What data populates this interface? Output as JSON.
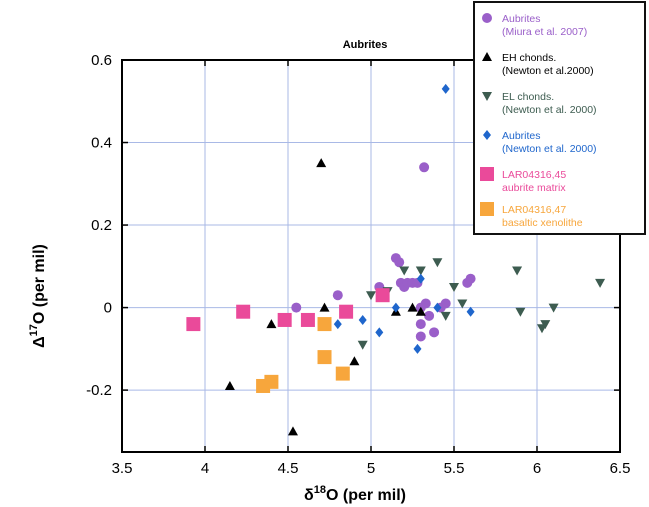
{
  "chart_data": {
    "type": "scatter",
    "title": "Aubrites",
    "xlabel": "δ18O (per mil)",
    "xlabel_parts": {
      "delta": "δ",
      "sup": "18",
      "rest": "O (per mil)"
    },
    "ylabel": "Δ17O (per mil)",
    "ylabel_parts": {
      "delta": "Δ",
      "sup": "17",
      "rest": "O (per mil)"
    },
    "xlim": [
      3.5,
      6.5
    ],
    "ylim": [
      -0.35,
      0.6
    ],
    "x_ticks": [
      3.5,
      4,
      4.5,
      5,
      5.5,
      6,
      6.5
    ],
    "x_tick_labels": [
      "3.5",
      "4",
      "4.5",
      "5",
      "5.5",
      "6",
      "6.5"
    ],
    "y_ticks": [
      -0.2,
      0,
      0.2,
      0.4,
      0.6
    ],
    "y_tick_labels": [
      "-0.2",
      "0",
      "0.2",
      "0.4",
      "0.6"
    ],
    "grid": true,
    "legend_position": "top-right",
    "series": [
      {
        "name": "Aubrites (Miura et al. 2007)",
        "legend_lines": [
          "Aubrites",
          "(Miura et al. 2007)"
        ],
        "marker": "circle",
        "color": "#9a5fc9",
        "points": [
          [
            4.55,
            0.0
          ],
          [
            4.8,
            0.03
          ],
          [
            5.05,
            0.05
          ],
          [
            5.15,
            0.12
          ],
          [
            5.17,
            0.11
          ],
          [
            5.18,
            0.06
          ],
          [
            5.2,
            0.05
          ],
          [
            5.22,
            0.06
          ],
          [
            5.25,
            0.06
          ],
          [
            5.28,
            0.06
          ],
          [
            5.3,
            -0.07
          ],
          [
            5.3,
            -0.04
          ],
          [
            5.3,
            0.0
          ],
          [
            5.32,
            0.34
          ],
          [
            5.33,
            0.01
          ],
          [
            5.35,
            -0.02
          ],
          [
            5.38,
            -0.06
          ],
          [
            5.42,
            0.0
          ],
          [
            5.45,
            0.01
          ],
          [
            5.58,
            0.06
          ],
          [
            5.6,
            0.07
          ]
        ]
      },
      {
        "name": "EH chonds. (Newton et al.2000)",
        "legend_lines": [
          "EH chonds.",
          "(Newton et al.2000)"
        ],
        "marker": "triangle-up",
        "color": "#000000",
        "points": [
          [
            4.15,
            -0.19
          ],
          [
            4.4,
            -0.04
          ],
          [
            4.53,
            -0.3
          ],
          [
            4.7,
            0.35
          ],
          [
            4.72,
            0.0
          ],
          [
            4.9,
            -0.13
          ],
          [
            5.15,
            -0.01
          ],
          [
            5.25,
            0.0
          ],
          [
            5.3,
            -0.01
          ]
        ]
      },
      {
        "name": "EL chonds. (Newton et al. 2000)",
        "legend_lines": [
          "EL chonds.",
          "(Newton et al. 2000)"
        ],
        "marker": "triangle-down",
        "color": "#3d5c50",
        "points": [
          [
            4.95,
            -0.09
          ],
          [
            5.0,
            0.03
          ],
          [
            5.1,
            0.04
          ],
          [
            5.2,
            0.09
          ],
          [
            5.3,
            0.09
          ],
          [
            5.4,
            0.11
          ],
          [
            5.45,
            -0.02
          ],
          [
            5.5,
            0.05
          ],
          [
            5.55,
            0.01
          ],
          [
            5.88,
            0.09
          ],
          [
            5.9,
            -0.01
          ],
          [
            6.03,
            -0.05
          ],
          [
            6.05,
            -0.04
          ],
          [
            6.1,
            0.0
          ],
          [
            6.38,
            0.06
          ]
        ]
      },
      {
        "name": "Aubrites (Newton et al. 2000)",
        "legend_lines": [
          "Aubrites",
          "(Newton et al. 2000)"
        ],
        "marker": "diamond",
        "color": "#1f66cc",
        "points": [
          [
            4.8,
            -0.04
          ],
          [
            4.95,
            -0.03
          ],
          [
            5.05,
            -0.06
          ],
          [
            5.15,
            0.0
          ],
          [
            5.28,
            -0.1
          ],
          [
            5.3,
            0.07
          ],
          [
            5.4,
            0.0
          ],
          [
            5.45,
            0.53
          ],
          [
            5.6,
            -0.01
          ]
        ]
      },
      {
        "name": "LAR04316,45 aubrite matrix",
        "legend_lines": [
          "LAR04316,45",
          "aubrite matrix"
        ],
        "marker": "square",
        "color": "#ea4a9a",
        "points": [
          [
            3.93,
            -0.04
          ],
          [
            4.23,
            -0.01
          ],
          [
            4.48,
            -0.03
          ],
          [
            4.62,
            -0.03
          ],
          [
            4.85,
            -0.01
          ],
          [
            5.07,
            0.03
          ]
        ]
      },
      {
        "name": "LAR04316,47 basaltic xenolithe",
        "legend_lines": [
          "LAR04316,47",
          "basaltic xenolithe"
        ],
        "marker": "square",
        "color": "#f7a63c",
        "points": [
          [
            4.35,
            -0.19
          ],
          [
            4.4,
            -0.18
          ],
          [
            4.72,
            -0.04
          ],
          [
            4.72,
            -0.12
          ],
          [
            4.83,
            -0.16
          ]
        ]
      }
    ]
  }
}
